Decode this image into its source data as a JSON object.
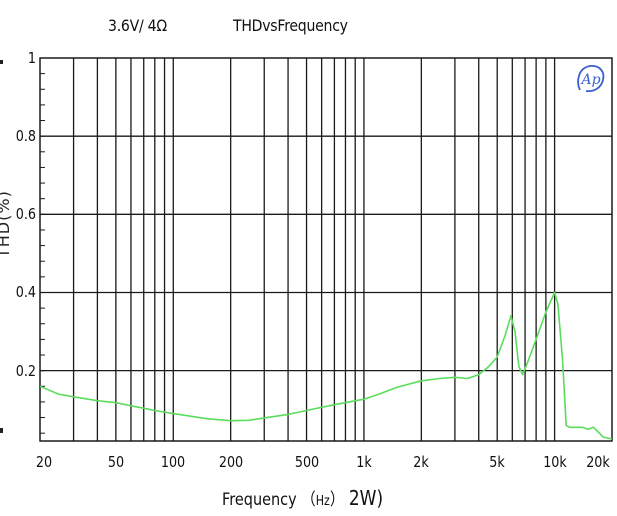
{
  "header": {
    "condition": "3.6V/ 4Ω",
    "title": "THDvsFrequency"
  },
  "logo_text": "Ap",
  "chart_data": {
    "type": "line",
    "title": "THDvsFrequency",
    "subtitle": "3.6V/ 4Ω",
    "xlabel": "Frequency",
    "xlabel_unit": "Hz",
    "xlabel_suffix": "2W)",
    "ylabel": "THD(%)",
    "x_scale": "log",
    "xlim": [
      20,
      20000
    ],
    "ylim": [
      0.02,
      1.0
    ],
    "x_ticks": [
      20,
      50,
      100,
      200,
      500,
      1000,
      2000,
      5000,
      10000,
      20000
    ],
    "x_tick_labels": [
      "20",
      "50",
      "100",
      "200",
      "500",
      "1k",
      "2k",
      "5k",
      "10k",
      "20k"
    ],
    "y_ticks": [
      0.2,
      0.4,
      0.6,
      0.8,
      1
    ],
    "y_tick_labels": [
      "0.2",
      "0.4",
      "0.6",
      "0.8",
      "1"
    ],
    "grid": true,
    "legend": "none",
    "series": [
      {
        "color": "#5cdc5c",
        "x": [
          20,
          25,
          30,
          40,
          50,
          60,
          70,
          80,
          100,
          150,
          200,
          250,
          300,
          400,
          500,
          700,
          1000,
          1200,
          1500,
          2000,
          2500,
          3000,
          3500,
          4000,
          4500,
          5000,
          5500,
          5900,
          6200,
          6500,
          6800,
          7200,
          8000,
          9000,
          10000,
          10400,
          11000,
          11500,
          12000,
          14000,
          15000,
          16000,
          18000,
          20000
        ],
        "y": [
          0.16,
          0.14,
          0.133,
          0.123,
          0.118,
          0.11,
          0.104,
          0.098,
          0.09,
          0.077,
          0.072,
          0.073,
          0.079,
          0.088,
          0.098,
          0.113,
          0.127,
          0.14,
          0.158,
          0.174,
          0.18,
          0.183,
          0.18,
          0.19,
          0.21,
          0.235,
          0.29,
          0.34,
          0.3,
          0.21,
          0.19,
          0.22,
          0.28,
          0.35,
          0.4,
          0.37,
          0.23,
          0.06,
          0.055,
          0.055,
          0.05,
          0.055,
          0.03,
          0.025
        ]
      }
    ]
  },
  "colors": {
    "background": "#ffffff",
    "grid": "#1a1a1a",
    "curve": "#5cdc5c",
    "logo": "#3a5fd0"
  }
}
